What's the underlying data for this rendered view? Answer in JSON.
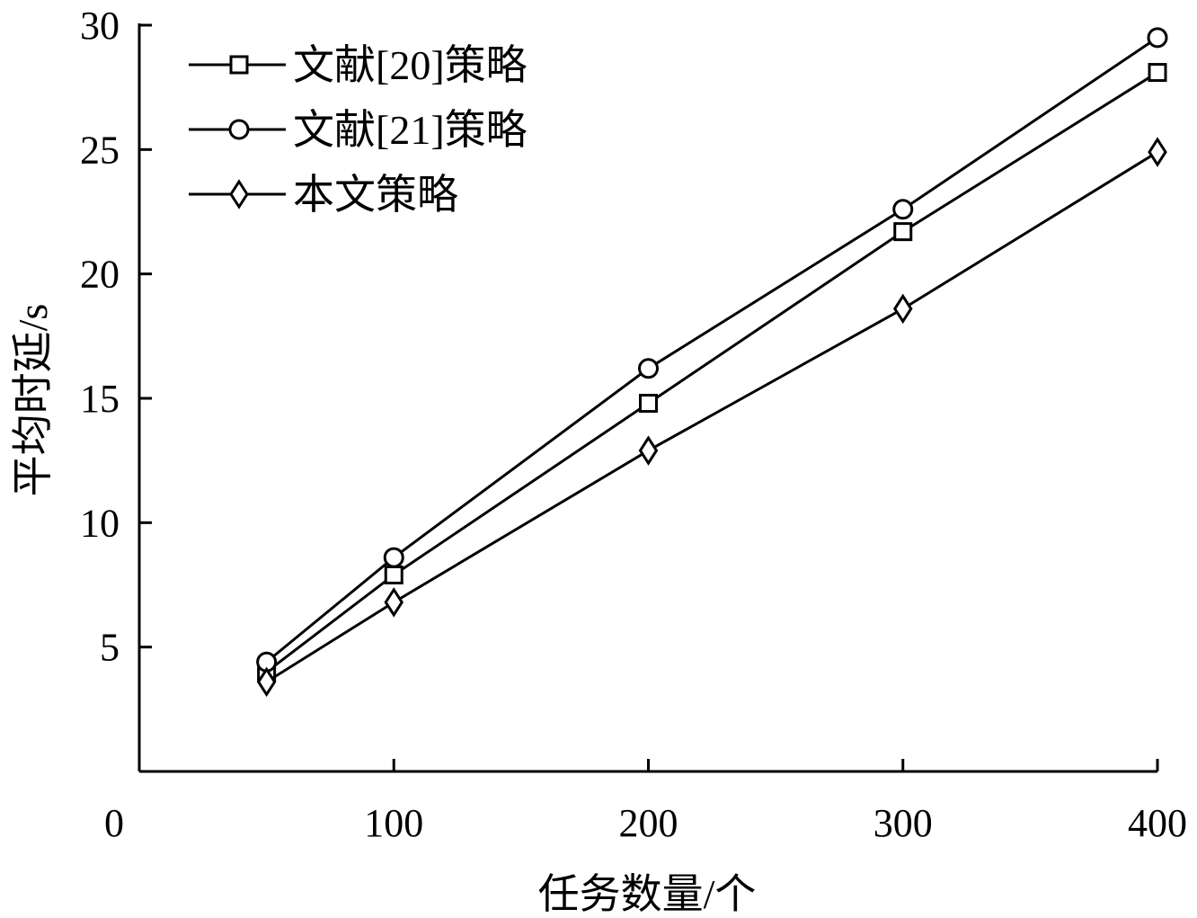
{
  "chart_data": {
    "type": "line",
    "title": "",
    "xlabel": "任务数量/个",
    "ylabel": "平均时延/s",
    "x_ticks": [
      "0",
      "100",
      "200",
      "300",
      "400"
    ],
    "x_tick_values": [
      0,
      100,
      200,
      300,
      400
    ],
    "y_ticks": [
      "5",
      "10",
      "15",
      "20",
      "25",
      "30"
    ],
    "y_tick_values": [
      5,
      10,
      15,
      20,
      25,
      30
    ],
    "xlim": [
      0,
      400
    ],
    "ylim": [
      0,
      30
    ],
    "grid": false,
    "legend_position": "top-left",
    "x": [
      50,
      100,
      200,
      300,
      400
    ],
    "series": [
      {
        "name": "文献[20]策略",
        "marker": "square",
        "values": [
          4.0,
          7.9,
          14.8,
          21.7,
          28.1
        ]
      },
      {
        "name": "文献[21]策略",
        "marker": "circle",
        "values": [
          4.4,
          8.6,
          16.2,
          22.6,
          29.5
        ]
      },
      {
        "name": "本文策略",
        "marker": "diamond",
        "values": [
          3.6,
          6.8,
          12.9,
          18.6,
          24.9
        ]
      }
    ]
  }
}
